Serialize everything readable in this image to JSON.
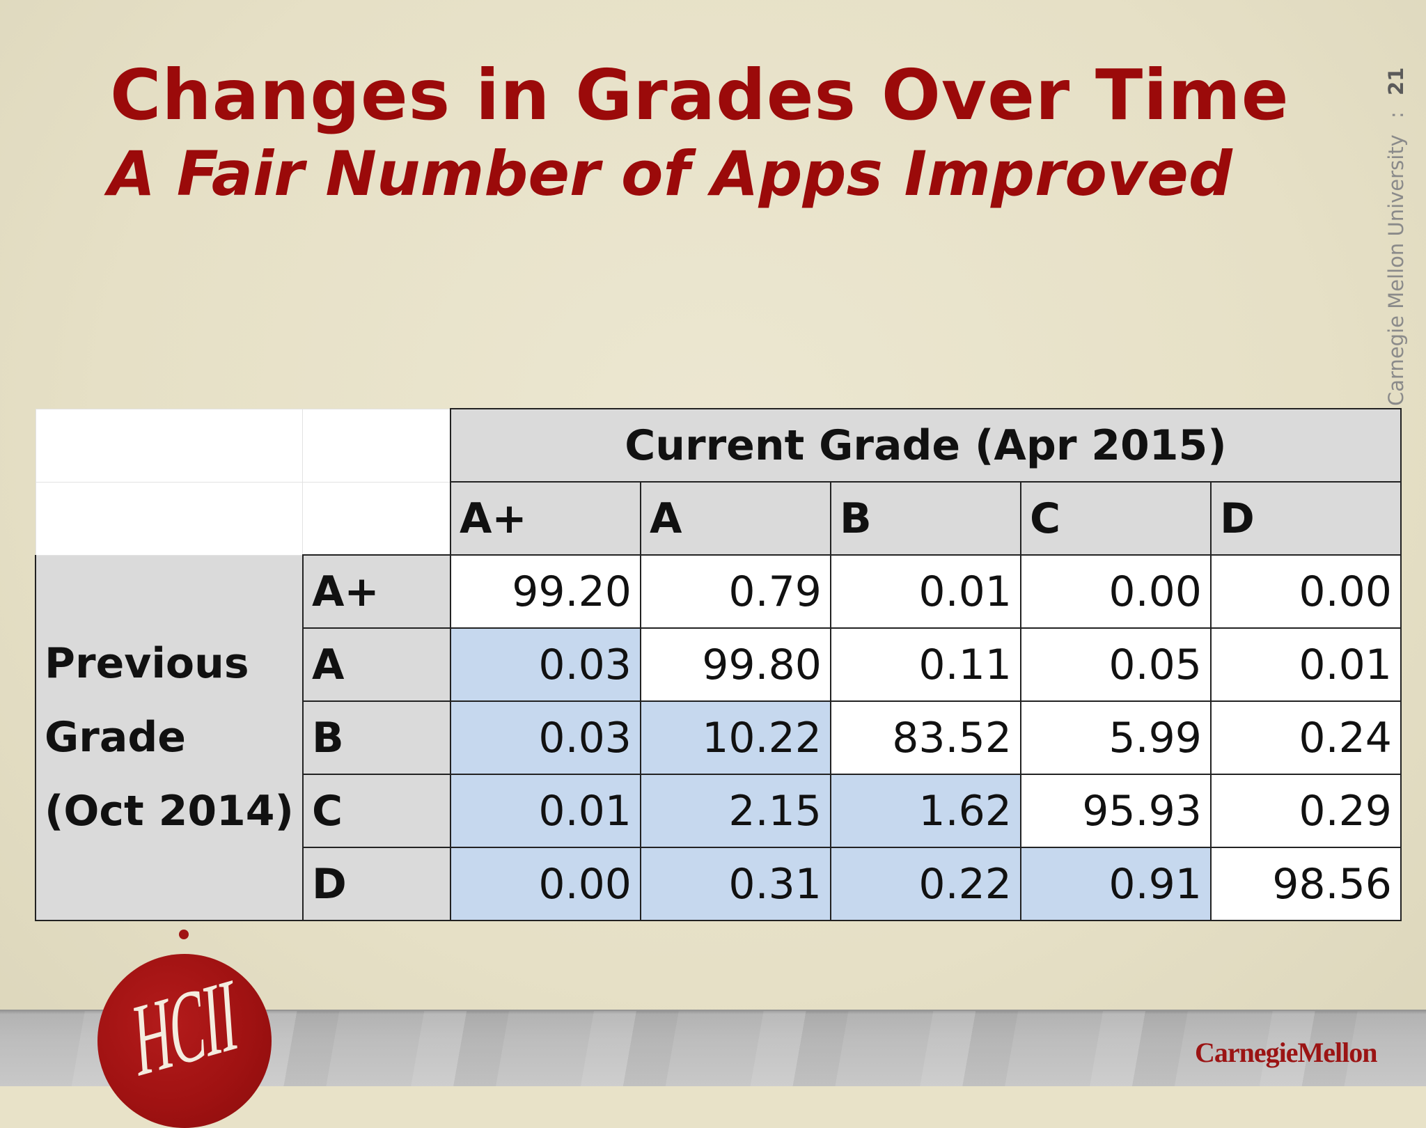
{
  "slide": {
    "title": "Changes in Grades Over Time",
    "subtitle": "A Fair Number of Apps Improved",
    "footer_org": "Carnegie Mellon University",
    "footer_sep": ":",
    "page_number": "21"
  },
  "table": {
    "column_group_title": "Current Grade (Apr 2015)",
    "columns": [
      "A+",
      "A",
      "B",
      "C",
      "D"
    ],
    "row_group_title_lines": [
      "Previous",
      "Grade",
      "(Oct 2014)"
    ],
    "rows": [
      {
        "label": "A+",
        "values": [
          "99.20",
          "0.79",
          "0.01",
          "0.00",
          "0.00"
        ]
      },
      {
        "label": "A",
        "values": [
          "0.03",
          "99.80",
          "0.11",
          "0.05",
          "0.01"
        ]
      },
      {
        "label": "B",
        "values": [
          "0.03",
          "10.22",
          "83.52",
          "5.99",
          "0.24"
        ]
      },
      {
        "label": "C",
        "values": [
          "0.01",
          "2.15",
          "1.62",
          "95.93",
          "0.29"
        ]
      },
      {
        "label": "D",
        "values": [
          "0.00",
          "0.31",
          "0.22",
          "0.91",
          "98.56"
        ]
      }
    ]
  },
  "logos": {
    "hcii_text": "HCII",
    "cmu_wordmark": "CarnegieMellon"
  },
  "colors": {
    "title": "#9b0a0a",
    "highlight_cell": "#c6d8ee",
    "header_cell": "#dadada"
  }
}
